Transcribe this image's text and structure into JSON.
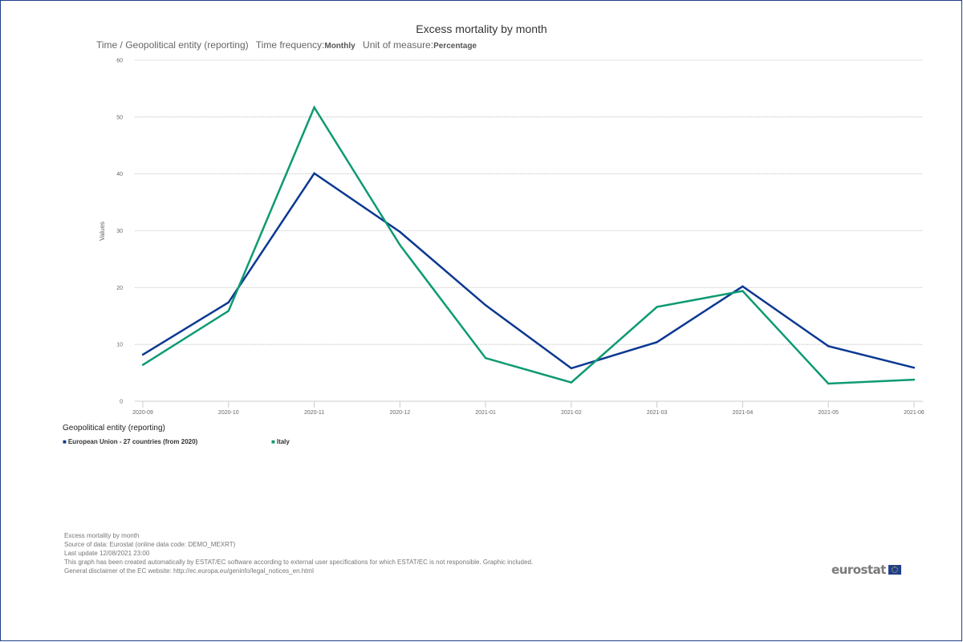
{
  "title": "Excess mortality by month",
  "subtitle": {
    "dimension_label": "Time / Geopolitical entity (reporting)",
    "frequency_label": "Time frequency:",
    "frequency_value": "Monthly",
    "unit_label": "Unit of measure:",
    "unit_value": "Percentage"
  },
  "legend": {
    "title": "Geopolitical entity (reporting)",
    "square_glyph": "■"
  },
  "footer": {
    "line1": "Excess mortality by month",
    "line2": "Source of data: Eurostat (online data code: DEMO_MEXRT)",
    "line3": "Last update 12/08/2021 23:00",
    "line4": "This graph has been created automatically by ESTAT/EC software according to external user specifications for which ESTAT/EC is not responsible. Graphic included.",
    "line5": "General disclaimer of the EC website: http://ec.europa.eu/geninfo/legal_notices_en.html"
  },
  "logo": {
    "text": "eurostat",
    "flag_icon": "eu-flag-icon"
  },
  "colors": {
    "eu": "#0b3891",
    "italy": "#0e9a72",
    "frame": "#1f3f8a"
  },
  "chart_data": {
    "type": "line",
    "title": "Excess mortality by month",
    "xlabel": "",
    "ylabel": "Values",
    "ylim": [
      0,
      60
    ],
    "yticks": [
      0,
      10,
      20,
      30,
      40,
      50,
      60
    ],
    "grid": true,
    "legend_position": "bottom-left",
    "categories": [
      "2020-09",
      "2020-10",
      "2020-11",
      "2020-12",
      "2021-01",
      "2021-02",
      "2021-03",
      "2021-04",
      "2021-05",
      "2021-06"
    ],
    "series": [
      {
        "name": "European Union - 27 countries (from 2020)",
        "color": "#0b3891",
        "values": [
          8.2,
          17.4,
          40.1,
          29.8,
          16.9,
          5.8,
          10.4,
          20.2,
          9.7,
          5.9
        ]
      },
      {
        "name": "Italy",
        "color": "#0e9a72",
        "values": [
          6.4,
          15.9,
          51.7,
          27.5,
          7.6,
          3.3,
          16.6,
          19.4,
          3.1,
          3.8
        ]
      }
    ]
  }
}
